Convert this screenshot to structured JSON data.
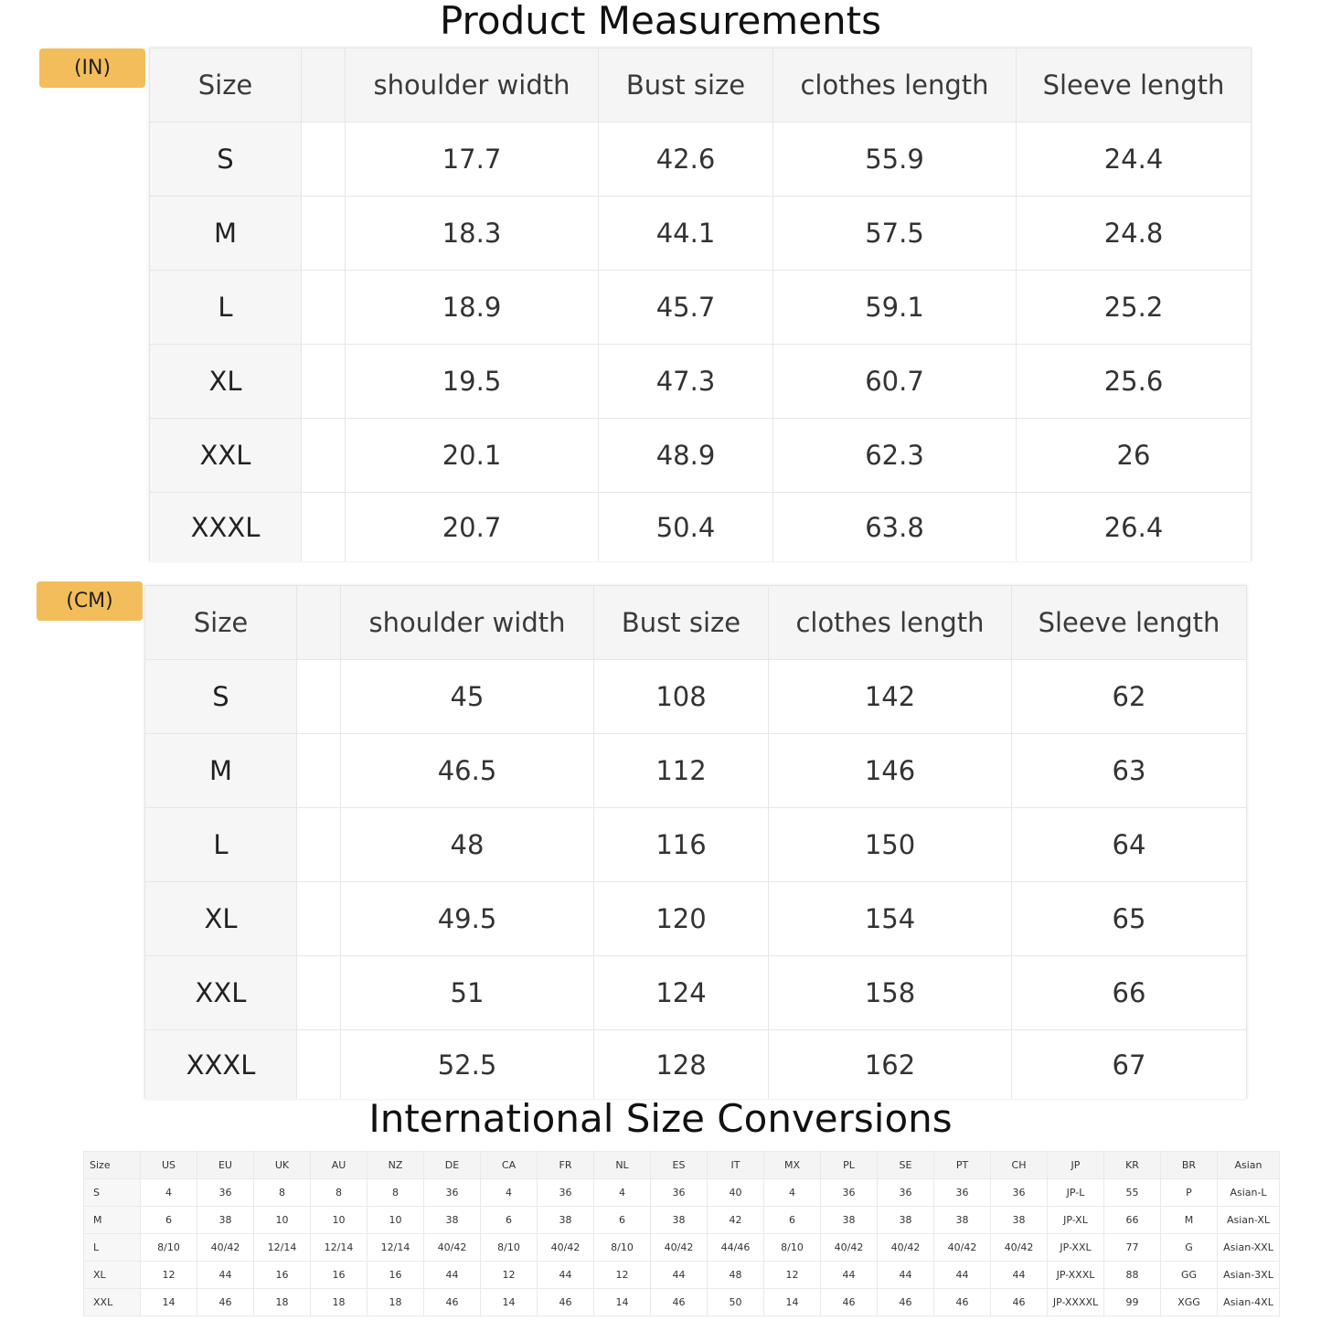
{
  "titles": {
    "measurements": "Product Measurements",
    "conversions": "International Size Conversions"
  },
  "inch_table": {
    "unit_label": "(IN)",
    "headers": [
      "Size",
      "",
      "shoulder width",
      "Bust size",
      "clothes length",
      "Sleeve length"
    ],
    "rows": [
      [
        "S",
        "",
        "17.7",
        "42.6",
        "55.9",
        "24.4"
      ],
      [
        "M",
        "",
        "18.3",
        "44.1",
        "57.5",
        "24.8"
      ],
      [
        "L",
        "",
        "18.9",
        "45.7",
        "59.1",
        "25.2"
      ],
      [
        "XL",
        "",
        "19.5",
        "47.3",
        "60.7",
        "25.6"
      ],
      [
        "XXL",
        "",
        "20.1",
        "48.9",
        "62.3",
        "26"
      ],
      [
        "XXXL",
        "",
        "20.7",
        "50.4",
        "63.8",
        "26.4"
      ]
    ]
  },
  "cm_table": {
    "unit_label": "(CM)",
    "headers": [
      "Size",
      "",
      "shoulder width",
      "Bust size",
      "clothes length",
      "Sleeve length"
    ],
    "rows": [
      [
        "S",
        "",
        "45",
        "108",
        "142",
        "62"
      ],
      [
        "M",
        "",
        "46.5",
        "112",
        "146",
        "63"
      ],
      [
        "L",
        "",
        "48",
        "116",
        "150",
        "64"
      ],
      [
        "XL",
        "",
        "49.5",
        "120",
        "154",
        "65"
      ],
      [
        "XXL",
        "",
        "51",
        "124",
        "158",
        "66"
      ],
      [
        "XXXL",
        "",
        "52.5",
        "128",
        "162",
        "67"
      ]
    ]
  },
  "conversion_table": {
    "headers": [
      "Size",
      "US",
      "EU",
      "UK",
      "AU",
      "NZ",
      "DE",
      "CA",
      "FR",
      "NL",
      "ES",
      "IT",
      "MX",
      "PL",
      "SE",
      "PT",
      "CH",
      "JP",
      "KR",
      "BR",
      "Asian"
    ],
    "rows": [
      [
        "S",
        "4",
        "36",
        "8",
        "8",
        "8",
        "36",
        "4",
        "36",
        "4",
        "36",
        "40",
        "4",
        "36",
        "36",
        "36",
        "36",
        "JP-L",
        "55",
        "P",
        "Asian-L"
      ],
      [
        "M",
        "6",
        "38",
        "10",
        "10",
        "10",
        "38",
        "6",
        "38",
        "6",
        "38",
        "42",
        "6",
        "38",
        "38",
        "38",
        "38",
        "JP-XL",
        "66",
        "M",
        "Asian-XL"
      ],
      [
        "L",
        "8/10",
        "40/42",
        "12/14",
        "12/14",
        "12/14",
        "40/42",
        "8/10",
        "40/42",
        "8/10",
        "40/42",
        "44/46",
        "8/10",
        "40/42",
        "40/42",
        "40/42",
        "40/42",
        "JP-XXL",
        "77",
        "G",
        "Asian-XXL"
      ],
      [
        "XL",
        "12",
        "44",
        "16",
        "16",
        "16",
        "44",
        "12",
        "44",
        "12",
        "44",
        "48",
        "12",
        "44",
        "44",
        "44",
        "44",
        "JP-XXXL",
        "88",
        "GG",
        "Asian-3XL"
      ],
      [
        "XXL",
        "14",
        "46",
        "18",
        "18",
        "18",
        "46",
        "14",
        "46",
        "14",
        "46",
        "50",
        "14",
        "46",
        "46",
        "46",
        "46",
        "JP-XXXXL",
        "99",
        "XGG",
        "Asian-4XL"
      ]
    ]
  }
}
